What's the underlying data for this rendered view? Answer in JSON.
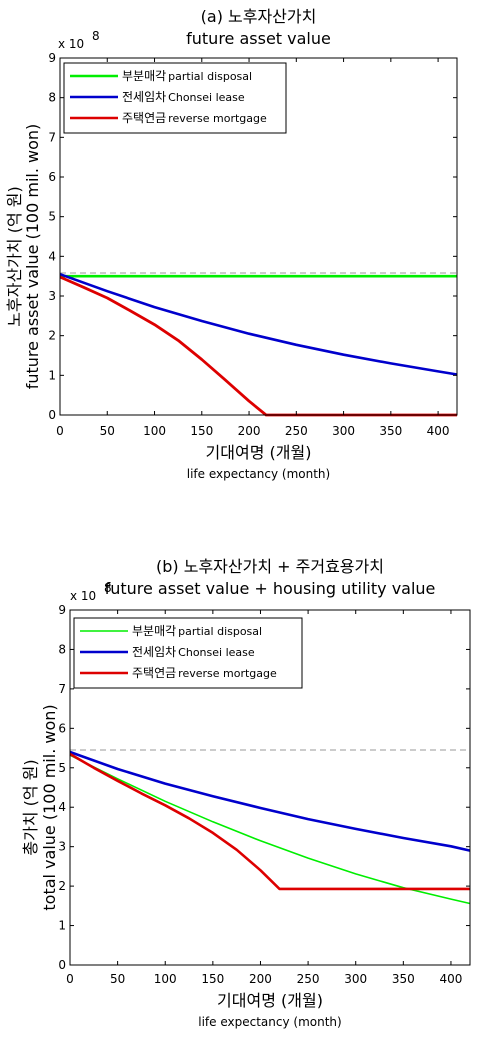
{
  "chart_data": [
    {
      "type": "line",
      "title": "(a) 노후자산가치",
      "subtitle": "future asset value",
      "exponent_label": "x 10",
      "exponent_sup": "8",
      "xlabel": "기대여명 (개월)",
      "xlabel_en": "life expectancy (month)",
      "ylabel": "노후자산가치 (억 원)",
      "ylabel_en": "future asset value (100 mil. won)",
      "xlim": [
        0,
        420
      ],
      "ylim": [
        0,
        9
      ],
      "xticks": [
        0,
        50,
        100,
        150,
        200,
        250,
        300,
        350,
        400
      ],
      "yticks": [
        0,
        1,
        2,
        3,
        4,
        5,
        6,
        7,
        8,
        9
      ],
      "legend_position": "top-left",
      "reference_line": {
        "y": 3.58,
        "style": "dashed",
        "color": "#999999"
      },
      "series": [
        {
          "name": "부분매각",
          "name_en": "partial disposal",
          "color": "#00ee00",
          "x": [
            0,
            420
          ],
          "y": [
            3.5,
            3.5
          ]
        },
        {
          "name": "전세임차",
          "name_en": "Chonsei lease",
          "color": "#0000cc",
          "x": [
            0,
            50,
            100,
            150,
            200,
            250,
            300,
            350,
            400,
            420
          ],
          "y": [
            3.55,
            3.12,
            2.72,
            2.37,
            2.05,
            1.77,
            1.52,
            1.3,
            1.1,
            1.02
          ]
        },
        {
          "name": "주택연금",
          "name_en": "reverse mortgage",
          "color": "#dd0000",
          "x": [
            0,
            25,
            50,
            75,
            100,
            125,
            150,
            175,
            200,
            218,
            250,
            300,
            350,
            400,
            420
          ],
          "y": [
            3.48,
            3.22,
            2.95,
            2.62,
            2.28,
            1.88,
            1.4,
            0.88,
            0.35,
            0,
            0,
            0,
            0,
            0,
            0
          ]
        }
      ]
    },
    {
      "type": "line",
      "title": "(b) 노후자산가치 + 주거효용가치",
      "subtitle": "future asset value + housing utility value",
      "exponent_label": "x 10",
      "exponent_sup": "8",
      "xlabel": "기대여명 (개월)",
      "xlabel_en": "life expectancy (month)",
      "ylabel": "총가치 (억 원)",
      "ylabel_en": "total value (100 mil. won)",
      "xlim": [
        0,
        420
      ],
      "ylim": [
        0,
        9
      ],
      "xticks": [
        0,
        50,
        100,
        150,
        200,
        250,
        300,
        350,
        400
      ],
      "yticks": [
        0,
        1,
        2,
        3,
        4,
        5,
        6,
        7,
        8,
        9
      ],
      "legend_position": "top-left",
      "reference_line": {
        "y": 5.45,
        "style": "dashed",
        "color": "#999999"
      },
      "series": [
        {
          "name": "부분매각",
          "name_en": "partial disposal",
          "color": "#00ee00",
          "x": [
            0,
            50,
            100,
            150,
            200,
            250,
            300,
            350,
            400,
            420
          ],
          "y": [
            5.32,
            4.72,
            4.15,
            3.63,
            3.15,
            2.71,
            2.31,
            1.96,
            1.67,
            1.56
          ]
        },
        {
          "name": "전세임차",
          "name_en": "Chonsei lease",
          "color": "#0000cc",
          "x": [
            0,
            50,
            100,
            150,
            200,
            250,
            300,
            350,
            400,
            420
          ],
          "y": [
            5.4,
            4.97,
            4.6,
            4.28,
            3.98,
            3.7,
            3.45,
            3.22,
            3.01,
            2.9
          ]
        },
        {
          "name": "주택연금",
          "name_en": "reverse mortgage",
          "color": "#dd0000",
          "x": [
            0,
            25,
            50,
            75,
            100,
            125,
            150,
            175,
            200,
            220,
            250,
            300,
            350,
            400,
            420
          ],
          "y": [
            5.35,
            5.0,
            4.67,
            4.35,
            4.05,
            3.72,
            3.35,
            2.92,
            2.4,
            1.93,
            1.93,
            1.93,
            1.93,
            1.93,
            1.93
          ]
        }
      ]
    }
  ]
}
